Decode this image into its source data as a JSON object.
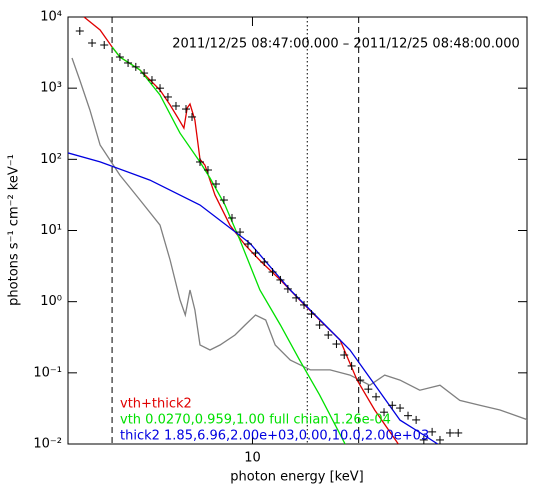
{
  "chart_data": {
    "type": "line",
    "title": "2011/12/25 08:47:00.000 – 2011/12/25 08:48:00.000",
    "xlabel": "photon energy [keV]",
    "ylabel": "photons s⁻¹ cm⁻² keV⁻¹",
    "xscale": "log",
    "yscale": "log",
    "xlim": [
      3,
      60
    ],
    "ylim": [
      0.01,
      10000
    ],
    "xticks": [
      10
    ],
    "yticks": [
      {
        "value": 0.01,
        "label": "10⁻²"
      },
      {
        "value": 0.1,
        "label": "10⁻¹"
      },
      {
        "value": 1,
        "label": "10⁰"
      },
      {
        "value": 10,
        "label": "10¹"
      },
      {
        "value": 100,
        "label": "10²"
      },
      {
        "value": 1000,
        "label": "10³"
      },
      {
        "value": 10000,
        "label": "10⁴"
      }
    ],
    "vlines": [
      {
        "x": 4,
        "style": "dashed"
      },
      {
        "x": 14.3,
        "style": "dotted"
      },
      {
        "x": 20,
        "style": "dashed"
      }
    ],
    "series": [
      {
        "color": "#808080",
        "mode": "line",
        "x": [
          3.08,
          3.24,
          3.46,
          3.7,
          4.21,
          4.8,
          5.47,
          5.84,
          6.23,
          6.45,
          6.65,
          6.87,
          7.1,
          7.58,
          8.09,
          8.92,
          9.53,
          10.2,
          10.9,
          11.6,
          12.8,
          14.6,
          16.6,
          18.9,
          21.5,
          23.7,
          26.2,
          29.8,
          34.0,
          38.7,
          44.1,
          50.3,
          60
        ],
        "values": [
          2650,
          1300,
          493,
          159,
          60,
          26.8,
          11.9,
          3.85,
          1.06,
          0.65,
          1.46,
          0.764,
          0.246,
          0.209,
          0.246,
          0.34,
          0.47,
          0.65,
          0.553,
          0.246,
          0.151,
          0.11,
          0.11,
          0.093,
          0.067,
          0.093,
          0.079,
          0.057,
          0.067,
          0.041,
          0.035,
          0.03,
          0.022
        ]
      },
      {
        "name": "vth+thick2",
        "color": "#e00000",
        "mode": "line",
        "x": [
          3.33,
          3.7,
          4.0,
          4.21,
          4.8,
          5.47,
          5.84,
          6.15,
          6.39,
          6.53,
          6.65,
          6.87,
          7.1,
          7.33,
          7.83,
          8.63,
          9.53,
          10.6,
          12.0,
          13.6,
          15.5,
          17.7,
          19.8,
          22.2,
          25.9
        ],
        "values": [
          10000,
          6560,
          3790,
          2740,
          1800,
          942,
          580,
          381,
          275,
          526,
          600,
          357,
          100,
          83,
          31.4,
          11.9,
          6.25,
          3.61,
          2.02,
          1.06,
          0.553,
          0.29,
          0.079,
          0.03,
          0.01
        ]
      },
      {
        "name": "vth 0.0270,0.959,1.00  full chian 1.26e-04",
        "color": "#00e000",
        "mode": "line",
        "x": [
          4.0,
          4.21,
          4.8,
          5.47,
          6.23,
          7.1,
          7.58,
          8.36,
          9.21,
          10.5,
          12.0,
          13.6,
          15.5,
          18.3
        ],
        "values": [
          3790,
          2740,
          1800,
          802,
          234,
          91.8,
          54.7,
          22.8,
          7.36,
          1.46,
          0.47,
          0.151,
          0.049,
          0.01
        ]
      },
      {
        "name": "thick2 1.85,6.96,2.00e+03,0.00,10.0,2.00e+03",
        "color": "#0000e0",
        "mode": "line",
        "x": [
          3,
          3.7,
          5.12,
          7.1,
          9.21,
          9.84,
          12.8,
          18.9,
          26.2,
          29.8,
          33.5
        ],
        "values": [
          123,
          92,
          51,
          22.8,
          8.5,
          6.6,
          1.46,
          0.209,
          0.0217,
          0.0145,
          0.01
        ]
      },
      {
        "color": "#000000",
        "mode": "markers",
        "x": [
          3.24,
          3.51,
          3.8,
          4.21,
          4.44,
          4.67,
          4.93,
          5.19,
          5.47,
          5.76,
          6.07,
          6.48,
          6.74,
          7.1,
          7.48,
          7.88,
          8.3,
          8.75,
          9.22,
          9.71,
          10.2,
          10.8,
          11.4,
          12.0,
          12.6,
          13.3,
          14.0,
          14.7,
          15.5,
          16.4,
          17.3,
          18.2,
          19.1,
          20.2,
          21.3,
          22.4,
          23.6,
          24.9,
          26.2,
          27.6,
          29.1,
          30.6,
          32.3,
          34.0,
          36.3,
          38.3
        ],
        "values": [
          6360,
          4310,
          4040,
          2740,
          2260,
          1990,
          1630,
          1300,
          1000,
          752,
          562,
          509,
          394,
          91.8,
          70.8,
          45.0,
          26.8,
          15.0,
          9.5,
          6.46,
          4.83,
          3.61,
          2.61,
          2.02,
          1.51,
          1.13,
          0.9,
          0.67,
          0.47,
          0.34,
          0.254,
          0.178,
          0.125,
          0.079,
          0.059,
          0.046,
          0.028,
          0.035,
          0.032,
          0.025,
          0.0218,
          0.0114,
          0.0148,
          0.0114,
          0.0143,
          0.0143
        ]
      }
    ]
  }
}
